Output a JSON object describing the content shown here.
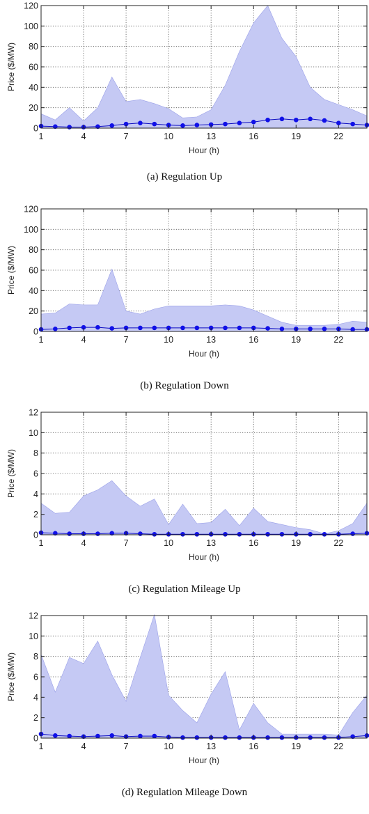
{
  "chart_data": [
    {
      "type": "area",
      "caption": "(a) Regulation Up",
      "xlabel": "Hour (h)",
      "ylabel": "Price ($/MW)",
      "xlim": [
        1,
        24
      ],
      "ylim": [
        0,
        120
      ],
      "xticks": [
        1,
        4,
        7,
        10,
        13,
        16,
        19,
        22
      ],
      "yticks": [
        0,
        20,
        40,
        60,
        80,
        100,
        120
      ],
      "x": [
        1,
        2,
        3,
        4,
        5,
        6,
        7,
        8,
        9,
        10,
        11,
        12,
        13,
        14,
        15,
        16,
        17,
        18,
        19,
        20,
        21,
        22,
        23,
        24
      ],
      "series": [
        {
          "kind": "range-upper",
          "values": [
            14,
            8,
            20,
            7,
            20,
            50,
            26,
            28,
            24,
            19,
            10,
            11,
            18,
            42,
            75,
            103,
            120,
            88,
            70,
            40,
            28,
            23,
            18,
            12
          ]
        },
        {
          "kind": "markers",
          "values": [
            2,
            1.5,
            1,
            1,
            1.5,
            2.5,
            4,
            5,
            4,
            3,
            2.5,
            3,
            3.5,
            4,
            5,
            6,
            8,
            9,
            8,
            9,
            7.5,
            5,
            4,
            3
          ]
        }
      ]
    },
    {
      "type": "area",
      "caption": "(b) Regulation Down",
      "xlabel": "Hour (h)",
      "ylabel": "Price ($/MW)",
      "xlim": [
        1,
        24
      ],
      "ylim": [
        0,
        120
      ],
      "xticks": [
        1,
        4,
        7,
        10,
        13,
        16,
        19,
        22
      ],
      "yticks": [
        0,
        20,
        40,
        60,
        80,
        100,
        120
      ],
      "x": [
        1,
        2,
        3,
        4,
        5,
        6,
        7,
        8,
        9,
        10,
        11,
        12,
        13,
        14,
        15,
        16,
        17,
        18,
        19,
        20,
        21,
        22,
        23,
        24
      ],
      "series": [
        {
          "kind": "range-upper",
          "values": [
            17,
            18,
            27,
            26,
            26,
            61,
            20,
            17,
            22,
            25,
            25,
            25,
            25,
            26,
            25,
            21,
            15,
            9,
            6,
            6,
            6,
            7,
            10,
            9
          ]
        },
        {
          "kind": "markers",
          "values": [
            2,
            2.5,
            3.5,
            4,
            4,
            3,
            3.5,
            3.5,
            3.5,
            3.5,
            3.5,
            3.5,
            3.5,
            3.5,
            3.5,
            3.5,
            3,
            2.5,
            2.5,
            2.5,
            2.5,
            2.5,
            2,
            2
          ]
        }
      ]
    },
    {
      "type": "area",
      "caption": "(c) Regulation Mileage Up",
      "xlabel": "Hour (h)",
      "ylabel": "Price ($/MW)",
      "xlim": [
        1,
        24
      ],
      "ylim": [
        0,
        12
      ],
      "xticks": [
        1,
        4,
        7,
        10,
        13,
        16,
        19,
        22
      ],
      "yticks": [
        0,
        2,
        4,
        6,
        8,
        10,
        12
      ],
      "x": [
        1,
        2,
        3,
        4,
        5,
        6,
        7,
        8,
        9,
        10,
        11,
        12,
        13,
        14,
        15,
        16,
        17,
        18,
        19,
        20,
        21,
        22,
        23,
        24
      ],
      "series": [
        {
          "kind": "range-upper",
          "values": [
            3.1,
            2.1,
            2.2,
            3.8,
            4.4,
            5.3,
            3.8,
            2.8,
            3.5,
            1.0,
            3.0,
            1.1,
            1.2,
            2.5,
            0.9,
            2.6,
            1.3,
            1.0,
            0.7,
            0.5,
            0.1,
            0.4,
            1.1,
            3.1
          ]
        },
        {
          "kind": "markers",
          "values": [
            0.2,
            0.15,
            0.1,
            0.1,
            0.1,
            0.15,
            0.15,
            0.1,
            0.05,
            0.05,
            0.05,
            0.05,
            0.05,
            0.05,
            0.05,
            0.05,
            0.05,
            0.05,
            0.05,
            0.05,
            0.05,
            0.05,
            0.1,
            0.15
          ]
        }
      ]
    },
    {
      "type": "area",
      "caption": "(d) Regulation Mileage Down",
      "xlabel": "Hour (h)",
      "ylabel": "Price ($/MW)",
      "xlim": [
        1,
        24
      ],
      "ylim": [
        0,
        12
      ],
      "xticks": [
        1,
        4,
        7,
        10,
        13,
        16,
        19,
        22
      ],
      "yticks": [
        0,
        2,
        4,
        6,
        8,
        10,
        12
      ],
      "x": [
        1,
        2,
        3,
        4,
        5,
        6,
        7,
        8,
        9,
        10,
        11,
        12,
        13,
        14,
        15,
        16,
        17,
        18,
        19,
        20,
        21,
        22,
        23,
        24
      ],
      "series": [
        {
          "kind": "range-upper",
          "values": [
            8.2,
            4.5,
            7.9,
            7.3,
            9.5,
            6.2,
            3.6,
            7.9,
            12.1,
            4.2,
            2.7,
            1.5,
            4.3,
            6.5,
            0.8,
            3.4,
            1.5,
            0.4,
            0.4,
            0.4,
            0.4,
            0.3,
            2.5,
            4.2
          ]
        },
        {
          "kind": "markers",
          "values": [
            0.4,
            0.25,
            0.2,
            0.15,
            0.2,
            0.25,
            0.15,
            0.2,
            0.2,
            0.1,
            0.05,
            0.05,
            0.05,
            0.05,
            0.05,
            0.05,
            0.05,
            0.05,
            0.05,
            0.05,
            0.05,
            0.05,
            0.15,
            0.25
          ]
        }
      ]
    }
  ],
  "colors": {
    "fill": "#c5c9f4",
    "fill_edge": "#9aa0e8",
    "marker": "#1010e8",
    "line": "#0a0ac0",
    "grid": "#555555",
    "axis": "#222222"
  }
}
